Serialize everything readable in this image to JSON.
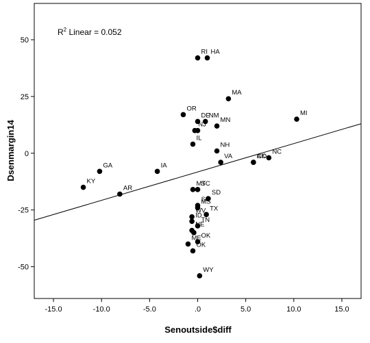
{
  "chart_data": {
    "type": "scatter",
    "xlabel": "Senoutside$diff",
    "ylabel": "Dsenmargin14",
    "xlim": [
      -17,
      17
    ],
    "ylim": [
      -64,
      66
    ],
    "x_ticks": [
      -15,
      -10,
      -5,
      0,
      5,
      10,
      15
    ],
    "x_tick_labels": [
      "-15.0",
      "-10.0",
      "-5.0",
      ".0",
      "5.0",
      "10.0",
      "15.0"
    ],
    "y_ticks": [
      50,
      25,
      0,
      -25,
      -50
    ],
    "y_tick_labels": [
      "50",
      "25",
      "0",
      "-25",
      "-50"
    ],
    "r2_prefix": "R",
    "r2_sup": "2",
    "r2_text": " Linear = 0.052",
    "fit_line": {
      "x": [
        -17,
        17
      ],
      "y": [
        -29.5,
        13.0
      ]
    },
    "grid": false,
    "points": [
      {
        "label": "RI",
        "x": 0.0,
        "y": 42
      },
      {
        "label": "HA",
        "x": 1.0,
        "y": 42
      },
      {
        "label": "MA",
        "x": 3.2,
        "y": 24
      },
      {
        "label": "MI",
        "x": 10.3,
        "y": 15
      },
      {
        "label": "OR",
        "x": -1.5,
        "y": 17
      },
      {
        "label": "DE",
        "x": 0.0,
        "y": 14
      },
      {
        "label": "NM",
        "x": 0.8,
        "y": 14
      },
      {
        "label": "NJ",
        "x": -0.3,
        "y": 10
      },
      {
        "label": "",
        "x": 0.0,
        "y": 10
      },
      {
        "label": "MN",
        "x": 2.0,
        "y": 12
      },
      {
        "label": "IL",
        "x": -0.5,
        "y": 4
      },
      {
        "label": "NH",
        "x": 2.0,
        "y": 1
      },
      {
        "label": "VA",
        "x": 2.4,
        "y": -4
      },
      {
        "label": "CO",
        "x": 5.8,
        "y": -4
      },
      {
        "label": "NC",
        "x": 7.4,
        "y": -2
      },
      {
        "label": "AK",
        "x": 5.8,
        "y": -4
      },
      {
        "label": "GA",
        "x": -10.2,
        "y": -8
      },
      {
        "label": "IA",
        "x": -4.2,
        "y": -8
      },
      {
        "label": "KY",
        "x": -11.9,
        "y": -15
      },
      {
        "label": "AR",
        "x": -8.1,
        "y": -18
      },
      {
        "label": "MT",
        "x": -0.5,
        "y": -16
      },
      {
        "label": "SC",
        "x": 0.0,
        "y": -16
      },
      {
        "label": "SD",
        "x": 1.1,
        "y": -20
      },
      {
        "label": "SC",
        "x": 0.0,
        "y": -23
      },
      {
        "label": "MS",
        "x": 0.0,
        "y": -24
      },
      {
        "label": "WV",
        "x": -0.6,
        "y": -28
      },
      {
        "label": "ID",
        "x": -0.6,
        "y": -30
      },
      {
        "label": "TX",
        "x": 0.9,
        "y": -27
      },
      {
        "label": "TN",
        "x": 0.0,
        "y": -32
      },
      {
        "label": "NE",
        "x": -0.6,
        "y": -34
      },
      {
        "label": "",
        "x": -0.4,
        "y": -35
      },
      {
        "label": "ME",
        "x": -1.0,
        "y": -40
      },
      {
        "label": "OK",
        "x": 0.0,
        "y": -39
      },
      {
        "label": "OK",
        "x": -0.5,
        "y": -43
      },
      {
        "label": "WY",
        "x": 0.2,
        "y": -54
      }
    ]
  }
}
